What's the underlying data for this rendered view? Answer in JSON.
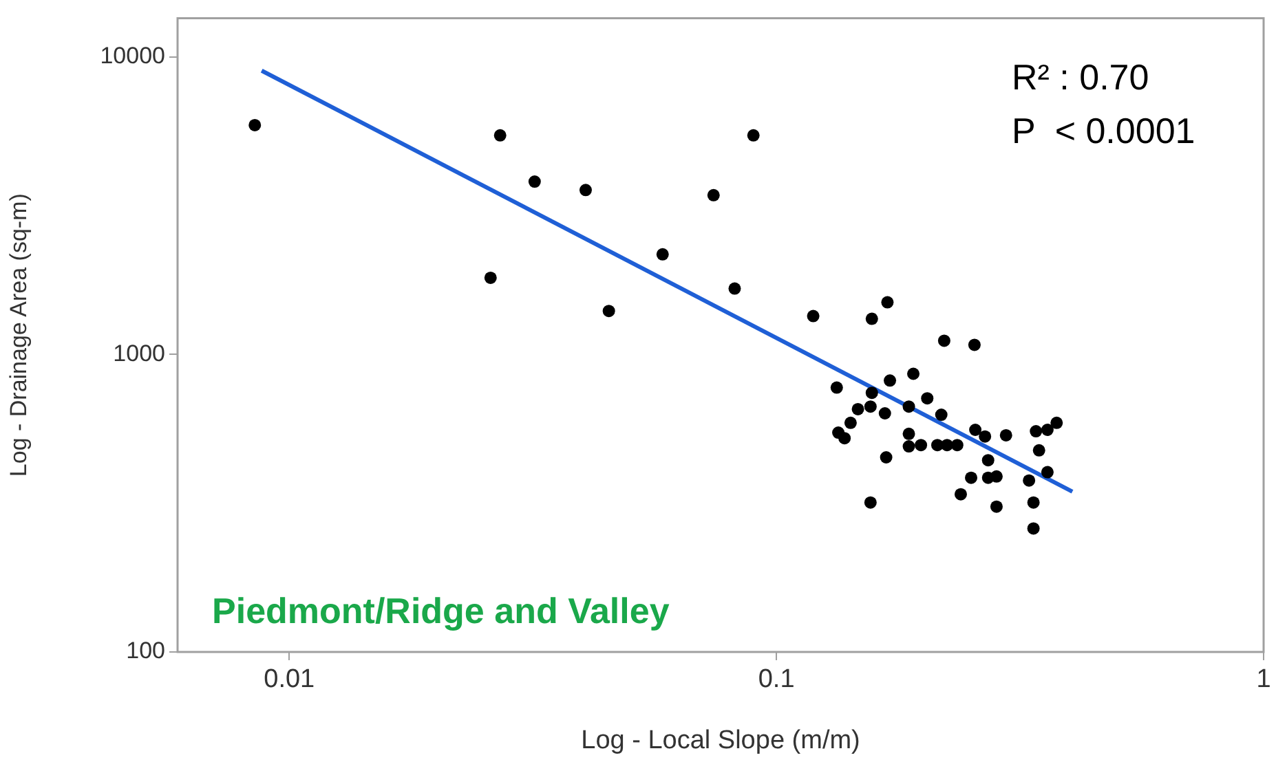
{
  "chart_data": {
    "type": "scatter",
    "xlabel": "Log - Local Slope (m/m)",
    "ylabel": "Log - Drainage Area (sq-m)",
    "log": "xy",
    "grid": false,
    "legend": false,
    "marker": "circle",
    "xlim": [
      0.0059,
      1
    ],
    "xticks": [
      0.01,
      0.1,
      1
    ],
    "ylim": [
      100,
      13500
    ],
    "yticks": [
      100,
      1000,
      10000
    ],
    "annotations": [
      "R² : 0.70",
      "P  < 0.0001",
      "Piedmont/Ridge and Valley"
    ],
    "series": [
      {
        "color": "#000000",
        "x": [
          0.0085,
          0.0271,
          0.0319,
          0.0406,
          0.0743,
          0.0897,
          0.0259,
          0.0453,
          0.0584,
          0.0821,
          0.119,
          0.157,
          0.169,
          0.221,
          0.255,
          0.133,
          0.171,
          0.191,
          0.204,
          0.157,
          0.147,
          0.156,
          0.167,
          0.142,
          0.187,
          0.218,
          0.134,
          0.138,
          0.187,
          0.187,
          0.198,
          0.214,
          0.224,
          0.235,
          0.256,
          0.268,
          0.296,
          0.341,
          0.36,
          0.376,
          0.168,
          0.272,
          0.346,
          0.36,
          0.251,
          0.272,
          0.283,
          0.33,
          0.156,
          0.239,
          0.283,
          0.337,
          0.337
        ],
        "values": [
          5900,
          5450,
          3810,
          3570,
          3430,
          5450,
          1810,
          1400,
          2170,
          1665,
          1346,
          1318,
          1497,
          1112,
          1077,
          774,
          817,
          861,
          712,
          743,
          655,
          668,
          634,
          589,
          668,
          627,
          546,
          523,
          541,
          491,
          496,
          496,
          496,
          496,
          558,
          530,
          535,
          552,
          558,
          589,
          451,
          441,
          476,
          402,
          385,
          385,
          389,
          377,
          318,
          339,
          308,
          318,
          260
        ]
      },
      {
        "type": "line",
        "color": "#1f5fd6",
        "marker": "none",
        "x": [
          0.00878,
          0.405
        ],
        "values": [
          8990,
          346
        ]
      }
    ]
  }
}
